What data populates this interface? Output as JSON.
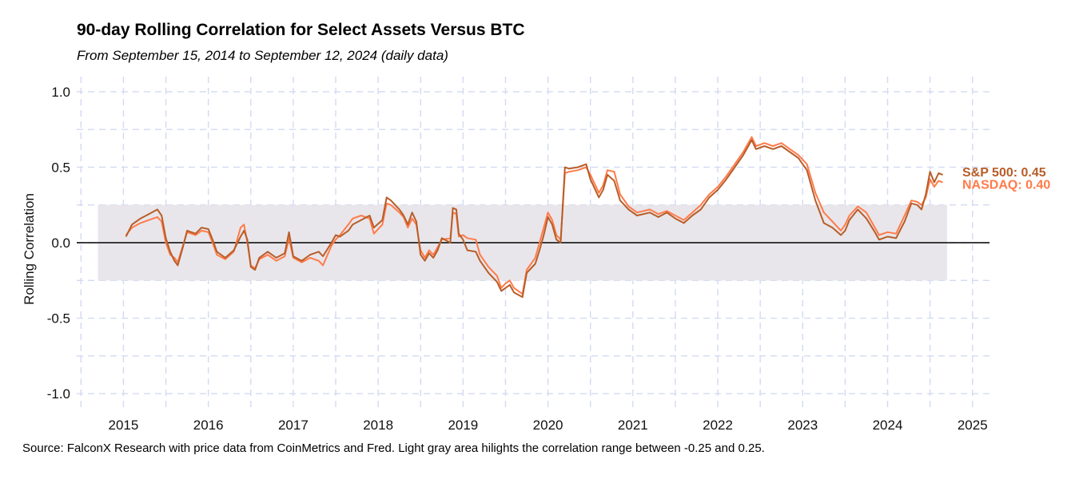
{
  "chart_data": {
    "type": "line",
    "title": "90-day Rolling Correlation for Select Assets Versus BTC",
    "subtitle": "From September 15, 2014 to September 12, 2024 (daily data)",
    "ylabel": "Rolling Correlation",
    "xlabel": "",
    "caption": "Source: FalconX Research with price data from CoinMetrics and Fred. Light gray area hilights the correlation range between -0.25 and 0.25.",
    "xlim": [
      2014.45,
      2025.2
    ],
    "ylim": [
      -1.1,
      1.1
    ],
    "x_ticks": [
      "2015",
      "2016",
      "2017",
      "2018",
      "2019",
      "2020",
      "2021",
      "2022",
      "2023",
      "2024",
      "2025"
    ],
    "y_ticks": [
      "1.0",
      "0.5",
      "0.0",
      "-0.5",
      "-1.0"
    ],
    "band": {
      "from": -0.25,
      "to": 0.25,
      "x_start": 2014.7,
      "x_end": 2024.7,
      "color": "#e8e6ea"
    },
    "zero_line": 0,
    "grid": true,
    "series": [
      {
        "name": "S&P 500",
        "end_label": "S&P 500: 0.45",
        "color": "#b85d28",
        "points": [
          [
            2015.03,
            0.04
          ],
          [
            2015.1,
            0.12
          ],
          [
            2015.2,
            0.16
          ],
          [
            2015.3,
            0.19
          ],
          [
            2015.4,
            0.22
          ],
          [
            2015.45,
            0.18
          ],
          [
            2015.5,
            0.03
          ],
          [
            2015.55,
            -0.06
          ],
          [
            2015.6,
            -0.12
          ],
          [
            2015.64,
            -0.15
          ],
          [
            2015.7,
            -0.03
          ],
          [
            2015.75,
            0.08
          ],
          [
            2015.85,
            0.06
          ],
          [
            2015.92,
            0.1
          ],
          [
            2016.0,
            0.09
          ],
          [
            2016.05,
            0.02
          ],
          [
            2016.1,
            -0.06
          ],
          [
            2016.2,
            -0.1
          ],
          [
            2016.3,
            -0.05
          ],
          [
            2016.38,
            0.04
          ],
          [
            2016.42,
            0.08
          ],
          [
            2016.46,
            0.02
          ],
          [
            2016.5,
            -0.16
          ],
          [
            2016.55,
            -0.18
          ],
          [
            2016.6,
            -0.1
          ],
          [
            2016.7,
            -0.06
          ],
          [
            2016.8,
            -0.1
          ],
          [
            2016.9,
            -0.07
          ],
          [
            2016.95,
            0.07
          ],
          [
            2017.0,
            -0.09
          ],
          [
            2017.1,
            -0.12
          ],
          [
            2017.2,
            -0.08
          ],
          [
            2017.3,
            -0.06
          ],
          [
            2017.35,
            -0.09
          ],
          [
            2017.45,
            0.0
          ],
          [
            2017.5,
            0.05
          ],
          [
            2017.55,
            0.04
          ],
          [
            2017.65,
            0.08
          ],
          [
            2017.7,
            0.12
          ],
          [
            2017.8,
            0.15
          ],
          [
            2017.9,
            0.18
          ],
          [
            2017.95,
            0.1
          ],
          [
            2018.05,
            0.15
          ],
          [
            2018.1,
            0.3
          ],
          [
            2018.15,
            0.28
          ],
          [
            2018.25,
            0.22
          ],
          [
            2018.3,
            0.18
          ],
          [
            2018.35,
            0.12
          ],
          [
            2018.4,
            0.2
          ],
          [
            2018.45,
            0.14
          ],
          [
            2018.5,
            -0.08
          ],
          [
            2018.55,
            -0.12
          ],
          [
            2018.6,
            -0.07
          ],
          [
            2018.65,
            -0.1
          ],
          [
            2018.7,
            -0.05
          ],
          [
            2018.75,
            0.03
          ],
          [
            2018.85,
            0.0
          ],
          [
            2018.88,
            0.23
          ],
          [
            2018.92,
            0.22
          ],
          [
            2018.95,
            0.06
          ],
          [
            2019.0,
            0.02
          ],
          [
            2019.05,
            -0.05
          ],
          [
            2019.15,
            -0.06
          ],
          [
            2019.2,
            -0.12
          ],
          [
            2019.3,
            -0.2
          ],
          [
            2019.4,
            -0.26
          ],
          [
            2019.45,
            -0.32
          ],
          [
            2019.5,
            -0.3
          ],
          [
            2019.55,
            -0.28
          ],
          [
            2019.6,
            -0.33
          ],
          [
            2019.7,
            -0.36
          ],
          [
            2019.75,
            -0.2
          ],
          [
            2019.85,
            -0.14
          ],
          [
            2019.9,
            -0.05
          ],
          [
            2019.95,
            0.05
          ],
          [
            2020.0,
            0.17
          ],
          [
            2020.05,
            0.12
          ],
          [
            2020.1,
            0.02
          ],
          [
            2020.15,
            0.0
          ],
          [
            2020.2,
            0.5
          ],
          [
            2020.25,
            0.49
          ],
          [
            2020.35,
            0.5
          ],
          [
            2020.45,
            0.52
          ],
          [
            2020.5,
            0.42
          ],
          [
            2020.6,
            0.3
          ],
          [
            2020.65,
            0.35
          ],
          [
            2020.7,
            0.45
          ],
          [
            2020.78,
            0.41
          ],
          [
            2020.85,
            0.28
          ],
          [
            2020.95,
            0.22
          ],
          [
            2021.05,
            0.18
          ],
          [
            2021.2,
            0.2
          ],
          [
            2021.3,
            0.17
          ],
          [
            2021.4,
            0.2
          ],
          [
            2021.5,
            0.16
          ],
          [
            2021.6,
            0.13
          ],
          [
            2021.7,
            0.18
          ],
          [
            2021.8,
            0.22
          ],
          [
            2021.9,
            0.3
          ],
          [
            2022.0,
            0.35
          ],
          [
            2022.1,
            0.42
          ],
          [
            2022.2,
            0.5
          ],
          [
            2022.3,
            0.58
          ],
          [
            2022.4,
            0.68
          ],
          [
            2022.45,
            0.62
          ],
          [
            2022.55,
            0.64
          ],
          [
            2022.65,
            0.62
          ],
          [
            2022.75,
            0.64
          ],
          [
            2022.85,
            0.6
          ],
          [
            2022.95,
            0.56
          ],
          [
            2023.05,
            0.48
          ],
          [
            2023.15,
            0.28
          ],
          [
            2023.25,
            0.13
          ],
          [
            2023.35,
            0.1
          ],
          [
            2023.45,
            0.05
          ],
          [
            2023.5,
            0.08
          ],
          [
            2023.55,
            0.15
          ],
          [
            2023.65,
            0.22
          ],
          [
            2023.75,
            0.16
          ],
          [
            2023.85,
            0.07
          ],
          [
            2023.9,
            0.02
          ],
          [
            2024.0,
            0.04
          ],
          [
            2024.1,
            0.03
          ],
          [
            2024.2,
            0.14
          ],
          [
            2024.28,
            0.26
          ],
          [
            2024.35,
            0.25
          ],
          [
            2024.4,
            0.22
          ],
          [
            2024.45,
            0.32
          ],
          [
            2024.5,
            0.47
          ],
          [
            2024.55,
            0.4
          ],
          [
            2024.6,
            0.46
          ],
          [
            2024.65,
            0.45
          ]
        ]
      },
      {
        "name": "NASDAQ",
        "end_label": "NASDAQ: 0.40",
        "color": "#ff7b4a",
        "points": [
          [
            2015.03,
            0.05
          ],
          [
            2015.1,
            0.1
          ],
          [
            2015.2,
            0.13
          ],
          [
            2015.3,
            0.15
          ],
          [
            2015.4,
            0.17
          ],
          [
            2015.45,
            0.14
          ],
          [
            2015.5,
            0.0
          ],
          [
            2015.55,
            -0.08
          ],
          [
            2015.6,
            -0.1
          ],
          [
            2015.64,
            -0.13
          ],
          [
            2015.7,
            -0.02
          ],
          [
            2015.75,
            0.07
          ],
          [
            2015.85,
            0.05
          ],
          [
            2015.92,
            0.08
          ],
          [
            2016.0,
            0.07
          ],
          [
            2016.05,
            0.0
          ],
          [
            2016.1,
            -0.08
          ],
          [
            2016.2,
            -0.11
          ],
          [
            2016.3,
            -0.06
          ],
          [
            2016.38,
            0.1
          ],
          [
            2016.42,
            0.12
          ],
          [
            2016.46,
            0.0
          ],
          [
            2016.5,
            -0.15
          ],
          [
            2016.55,
            -0.17
          ],
          [
            2016.6,
            -0.11
          ],
          [
            2016.7,
            -0.08
          ],
          [
            2016.8,
            -0.12
          ],
          [
            2016.9,
            -0.09
          ],
          [
            2016.95,
            0.03
          ],
          [
            2017.0,
            -0.1
          ],
          [
            2017.1,
            -0.13
          ],
          [
            2017.2,
            -0.1
          ],
          [
            2017.3,
            -0.12
          ],
          [
            2017.35,
            -0.15
          ],
          [
            2017.45,
            -0.02
          ],
          [
            2017.5,
            0.02
          ],
          [
            2017.55,
            0.05
          ],
          [
            2017.65,
            0.12
          ],
          [
            2017.7,
            0.16
          ],
          [
            2017.8,
            0.18
          ],
          [
            2017.9,
            0.16
          ],
          [
            2017.95,
            0.06
          ],
          [
            2018.05,
            0.12
          ],
          [
            2018.1,
            0.26
          ],
          [
            2018.15,
            0.25
          ],
          [
            2018.25,
            0.2
          ],
          [
            2018.3,
            0.17
          ],
          [
            2018.35,
            0.1
          ],
          [
            2018.4,
            0.16
          ],
          [
            2018.45,
            0.12
          ],
          [
            2018.5,
            -0.05
          ],
          [
            2018.55,
            -0.1
          ],
          [
            2018.6,
            -0.05
          ],
          [
            2018.65,
            -0.08
          ],
          [
            2018.7,
            -0.03
          ],
          [
            2018.75,
            0.02
          ],
          [
            2018.85,
            0.03
          ],
          [
            2018.88,
            0.2
          ],
          [
            2018.92,
            0.19
          ],
          [
            2018.95,
            0.04
          ],
          [
            2019.0,
            0.05
          ],
          [
            2019.05,
            0.03
          ],
          [
            2019.15,
            0.02
          ],
          [
            2019.2,
            -0.08
          ],
          [
            2019.3,
            -0.16
          ],
          [
            2019.4,
            -0.22
          ],
          [
            2019.45,
            -0.3
          ],
          [
            2019.5,
            -0.27
          ],
          [
            2019.55,
            -0.25
          ],
          [
            2019.6,
            -0.3
          ],
          [
            2019.7,
            -0.34
          ],
          [
            2019.75,
            -0.18
          ],
          [
            2019.85,
            -0.1
          ],
          [
            2019.9,
            0.0
          ],
          [
            2019.95,
            0.1
          ],
          [
            2020.0,
            0.2
          ],
          [
            2020.05,
            0.15
          ],
          [
            2020.1,
            0.05
          ],
          [
            2020.15,
            0.02
          ],
          [
            2020.2,
            0.46
          ],
          [
            2020.25,
            0.47
          ],
          [
            2020.35,
            0.48
          ],
          [
            2020.45,
            0.5
          ],
          [
            2020.5,
            0.45
          ],
          [
            2020.6,
            0.33
          ],
          [
            2020.65,
            0.38
          ],
          [
            2020.7,
            0.48
          ],
          [
            2020.78,
            0.47
          ],
          [
            2020.85,
            0.32
          ],
          [
            2020.95,
            0.24
          ],
          [
            2021.05,
            0.2
          ],
          [
            2021.2,
            0.22
          ],
          [
            2021.3,
            0.19
          ],
          [
            2021.4,
            0.21
          ],
          [
            2021.5,
            0.18
          ],
          [
            2021.6,
            0.15
          ],
          [
            2021.7,
            0.2
          ],
          [
            2021.8,
            0.25
          ],
          [
            2021.9,
            0.32
          ],
          [
            2022.0,
            0.37
          ],
          [
            2022.1,
            0.44
          ],
          [
            2022.2,
            0.52
          ],
          [
            2022.3,
            0.6
          ],
          [
            2022.4,
            0.7
          ],
          [
            2022.45,
            0.64
          ],
          [
            2022.55,
            0.66
          ],
          [
            2022.65,
            0.64
          ],
          [
            2022.75,
            0.66
          ],
          [
            2022.85,
            0.62
          ],
          [
            2022.95,
            0.58
          ],
          [
            2023.05,
            0.52
          ],
          [
            2023.15,
            0.33
          ],
          [
            2023.25,
            0.2
          ],
          [
            2023.35,
            0.14
          ],
          [
            2023.45,
            0.08
          ],
          [
            2023.5,
            0.12
          ],
          [
            2023.55,
            0.18
          ],
          [
            2023.65,
            0.24
          ],
          [
            2023.75,
            0.2
          ],
          [
            2023.85,
            0.1
          ],
          [
            2023.9,
            0.05
          ],
          [
            2024.0,
            0.07
          ],
          [
            2024.1,
            0.06
          ],
          [
            2024.2,
            0.18
          ],
          [
            2024.28,
            0.28
          ],
          [
            2024.35,
            0.27
          ],
          [
            2024.4,
            0.25
          ],
          [
            2024.45,
            0.3
          ],
          [
            2024.5,
            0.42
          ],
          [
            2024.55,
            0.37
          ],
          [
            2024.6,
            0.41
          ],
          [
            2024.65,
            0.4
          ]
        ]
      }
    ]
  }
}
